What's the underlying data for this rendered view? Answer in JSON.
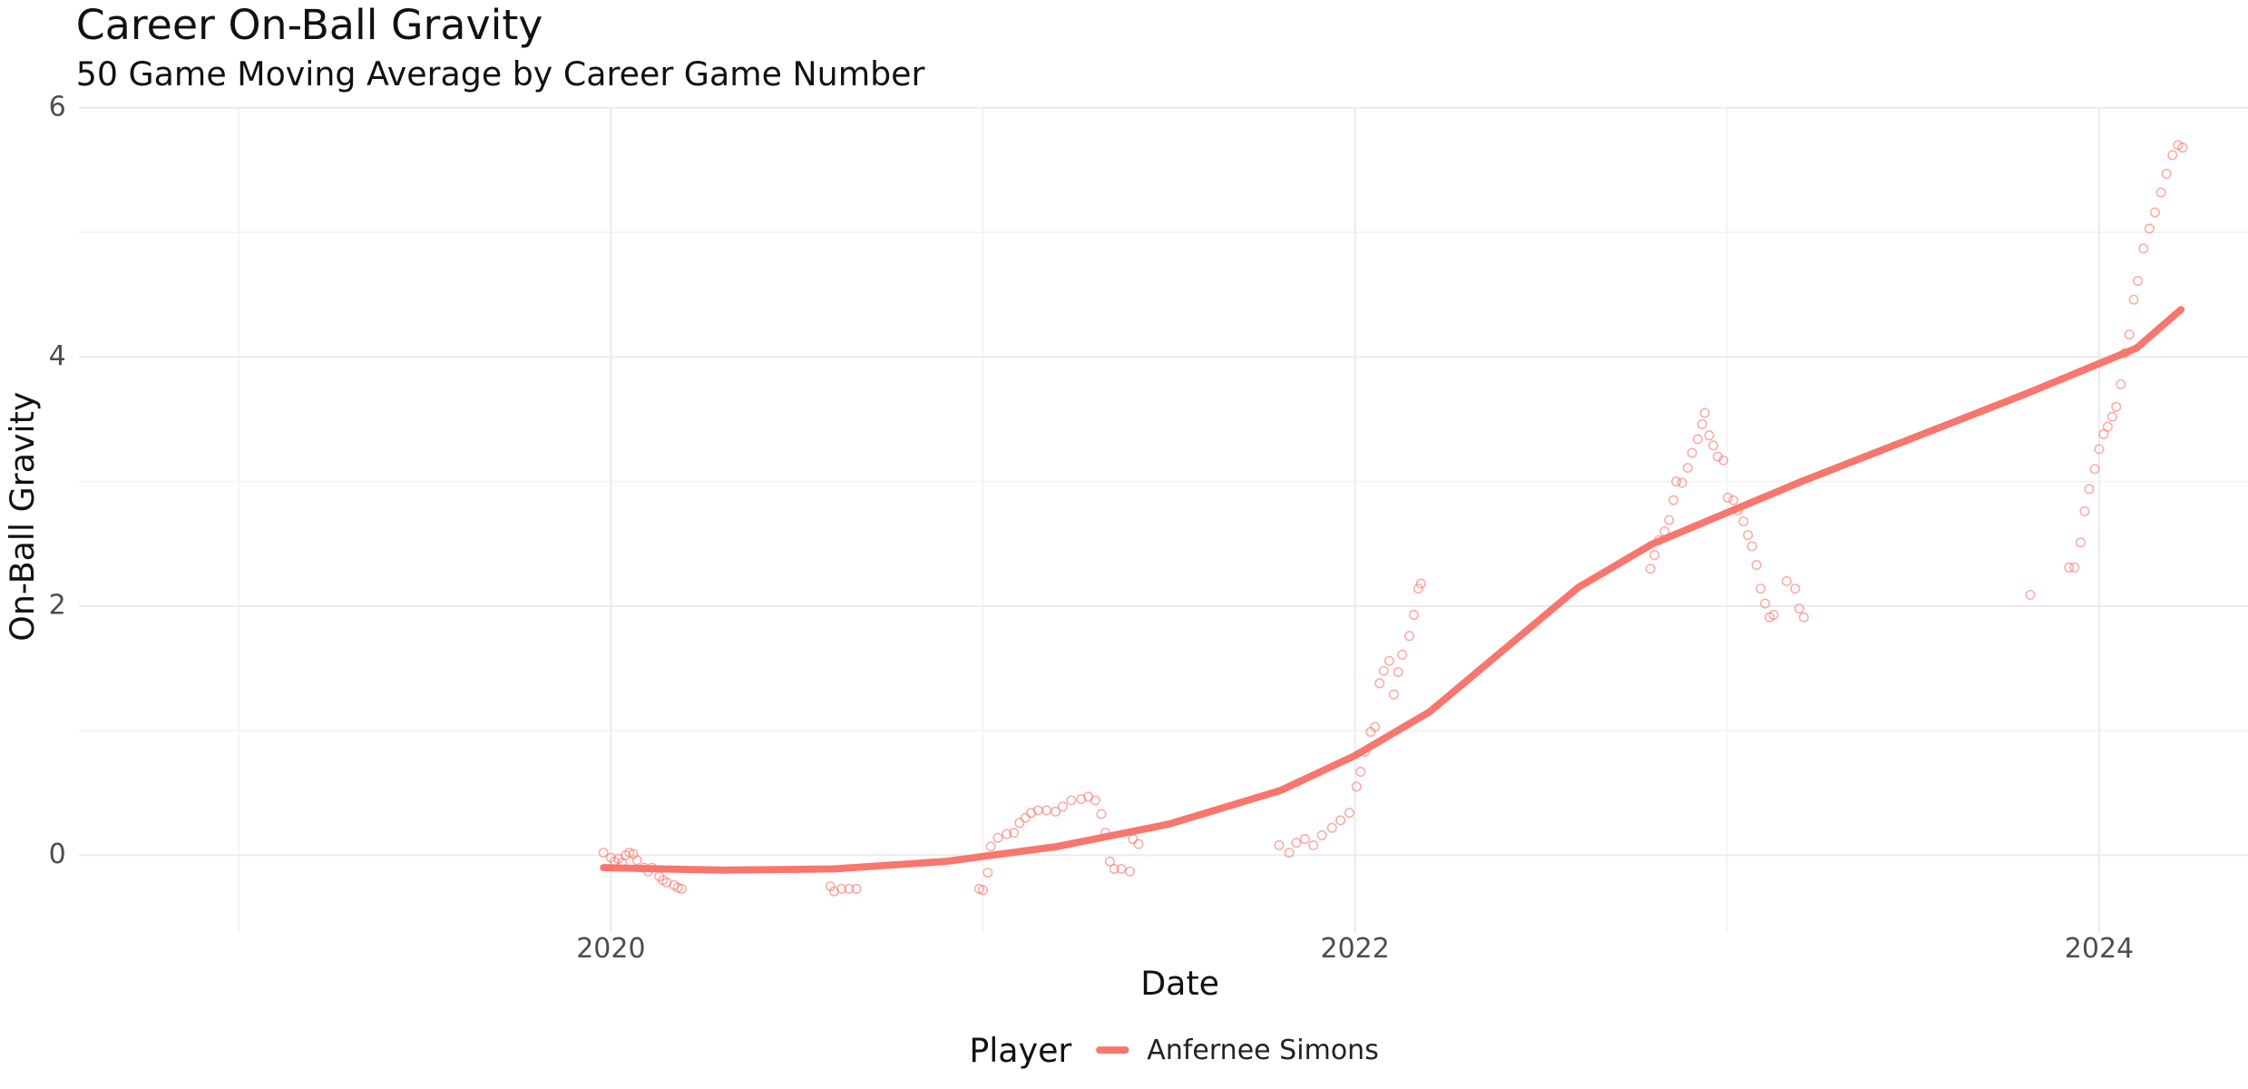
{
  "chart_data": {
    "type": "scatter",
    "title": "Career On-Ball Gravity",
    "subtitle": "50 Game Moving Average by Career Game Number",
    "x_label": "Date",
    "y_label": "On-Ball Gravity",
    "legend_title": "Player",
    "legend_position": "bottom",
    "grid": true,
    "minor_grid": true,
    "xlim": [
      2018.57,
      2024.4
    ],
    "ylim": [
      -0.62,
      6
    ],
    "xticks": [
      2020,
      2022,
      2024
    ],
    "yticks": [
      0,
      2,
      4,
      6
    ],
    "series": [
      {
        "name": "Anfernee Simons",
        "color": "#f8766d",
        "x": [
          2019.98,
          2020.0,
          2020.01,
          2020.02,
          2020.03,
          2020.04,
          2020.05,
          2020.06,
          2020.07,
          2020.09,
          2020.1,
          2020.11,
          2020.13,
          2020.14,
          2020.15,
          2020.17,
          2020.18,
          2020.19,
          2020.59,
          2020.6,
          2020.62,
          2020.64,
          2020.66,
          2020.99,
          2021.0,
          2021.013,
          2021.021,
          2021.04,
          2021.064,
          2021.083,
          2021.098,
          2021.114,
          2021.129,
          2021.148,
          2021.171,
          2021.195,
          2021.214,
          2021.237,
          2021.264,
          2021.283,
          2021.302,
          2021.318,
          2021.329,
          2021.341,
          2021.353,
          2021.372,
          2021.395,
          2021.403,
          2021.418,
          2021.796,
          2021.823,
          2021.842,
          2021.865,
          2021.888,
          2021.911,
          2021.938,
          2021.961,
          2021.985,
          2022.004,
          2022.015,
          2022.027,
          2022.042,
          2022.054,
          2022.066,
          2022.077,
          2022.092,
          2022.104,
          2022.116,
          2022.127,
          2022.146,
          2022.158,
          2022.17,
          2022.177,
          2022.794,
          2022.805,
          2022.817,
          2022.832,
          2022.844,
          2022.856,
          2022.863,
          2022.879,
          2022.894,
          2022.906,
          2022.921,
          2022.933,
          2022.94,
          2022.952,
          2022.963,
          2022.975,
          2022.99,
          2023.002,
          2023.017,
          2023.029,
          2023.044,
          2023.056,
          2023.067,
          2023.079,
          2023.09,
          2023.102,
          2023.114,
          2023.125,
          2023.16,
          2023.183,
          2023.194,
          2023.206,
          2023.815,
          2023.919,
          2023.934,
          2023.95,
          2023.961,
          2023.973,
          2023.988,
          2024.0,
          2024.012,
          2024.023,
          2024.035,
          2024.046,
          2024.058,
          2024.069,
          2024.081,
          2024.093,
          2024.104,
          2024.119,
          2024.135,
          2024.15,
          2024.166,
          2024.181,
          2024.197,
          2024.212,
          2024.224
        ],
        "values": [
          0.02,
          -0.02,
          -0.05,
          -0.03,
          -0.06,
          0.0,
          0.02,
          0.01,
          -0.04,
          -0.1,
          -0.13,
          -0.1,
          -0.17,
          -0.2,
          -0.22,
          -0.24,
          -0.26,
          -0.27,
          -0.25,
          -0.29,
          -0.27,
          -0.27,
          -0.27,
          -0.27,
          -0.28,
          -0.14,
          0.07,
          0.14,
          0.17,
          0.18,
          0.26,
          0.3,
          0.34,
          0.36,
          0.36,
          0.35,
          0.39,
          0.44,
          0.45,
          0.47,
          0.44,
          0.33,
          0.18,
          -0.05,
          -0.11,
          -0.11,
          -0.13,
          0.13,
          0.09,
          0.08,
          0.02,
          0.1,
          0.13,
          0.08,
          0.16,
          0.22,
          0.28,
          0.34,
          0.55,
          0.67,
          0.83,
          0.99,
          1.03,
          1.38,
          1.48,
          1.56,
          1.29,
          1.47,
          1.61,
          1.76,
          1.93,
          2.14,
          2.18,
          2.3,
          2.41,
          2.53,
          2.6,
          2.69,
          2.85,
          3.0,
          2.99,
          3.11,
          3.23,
          3.34,
          3.46,
          3.55,
          3.37,
          3.29,
          3.2,
          3.17,
          2.87,
          2.85,
          2.77,
          2.68,
          2.57,
          2.48,
          2.33,
          2.14,
          2.02,
          1.91,
          1.93,
          2.2,
          2.14,
          1.98,
          1.91,
          2.09,
          2.31,
          2.31,
          2.51,
          2.76,
          2.94,
          3.1,
          3.26,
          3.38,
          3.44,
          3.52,
          3.6,
          3.78,
          4.03,
          4.18,
          4.46,
          4.61,
          4.87,
          5.03,
          5.16,
          5.32,
          5.47,
          5.62,
          5.7,
          5.68
        ],
        "smooth": {
          "x": [
            2019.98,
            2020.3,
            2020.6,
            2020.9,
            2021.2,
            2021.5,
            2021.8,
            2022.0,
            2022.2,
            2022.4,
            2022.6,
            2022.8,
            2023.0,
            2023.2,
            2023.5,
            2023.8,
            2024.1,
            2024.22
          ],
          "values": [
            -0.1,
            -0.12,
            -0.11,
            -0.05,
            0.07,
            0.25,
            0.52,
            0.8,
            1.15,
            1.65,
            2.15,
            2.5,
            2.75,
            3.0,
            3.35,
            3.7,
            4.07,
            4.38
          ]
        }
      }
    ]
  }
}
